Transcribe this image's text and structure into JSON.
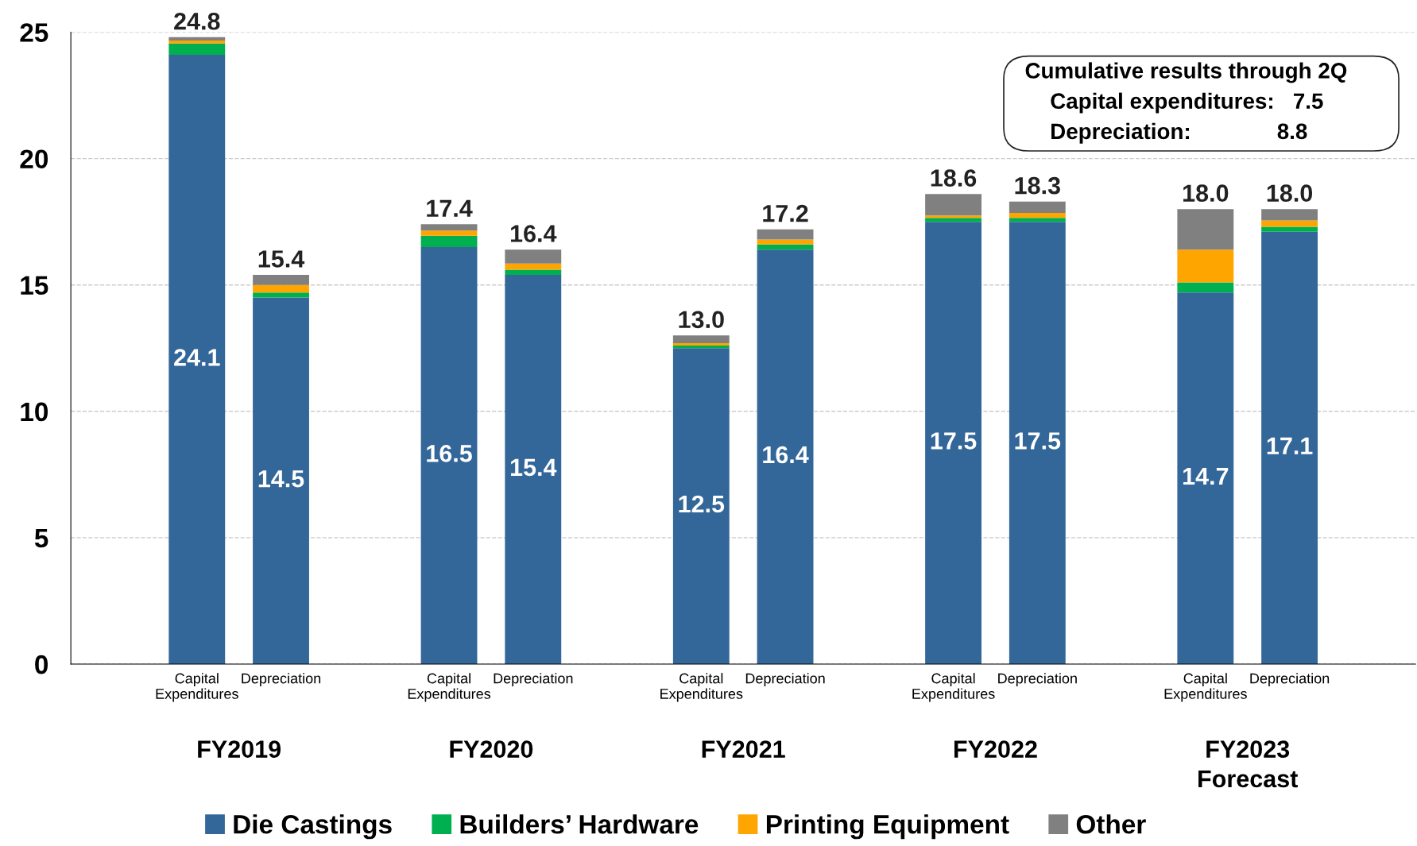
{
  "chart_data": {
    "type": "bar",
    "stacked": true,
    "categories": [
      "Capital\nExpenditures",
      "Depreciation",
      null,
      "Capital\nExpenditures",
      "Depreciation",
      null,
      "Capital\nExpenditures",
      "Depreciation",
      null,
      "Capital\nExpenditures",
      "Depreciation",
      null,
      "Capital\nExpenditures",
      "Depreciation"
    ],
    "series": [
      {
        "name": "Die Castings",
        "color": "#336699",
        "values": [
          24.1,
          14.5,
          null,
          16.5,
          15.4,
          null,
          12.5,
          16.4,
          null,
          17.5,
          17.5,
          null,
          14.7,
          17.1
        ],
        "value_labels": [
          "24.1",
          "14.5",
          null,
          "16.5",
          "15.4",
          null,
          "12.5",
          "16.4",
          null,
          "17.5",
          "17.5",
          null,
          "14.7",
          "17.1"
        ]
      },
      {
        "name": "Builders’ Hardware",
        "color": "#00b050",
        "values": [
          0.45,
          0.2,
          null,
          0.45,
          0.2,
          null,
          0.1,
          0.2,
          null,
          0.15,
          0.15,
          null,
          0.4,
          0.2
        ]
      },
      {
        "name": "Printing Equipment",
        "color": "#ffa500",
        "values": [
          0.12,
          0.3,
          null,
          0.2,
          0.25,
          null,
          0.1,
          0.2,
          null,
          0.1,
          0.2,
          null,
          1.3,
          0.25
        ]
      },
      {
        "name": "Other",
        "color": "#808080",
        "values": [
          0.13,
          0.4,
          null,
          0.25,
          0.55,
          null,
          0.3,
          0.4,
          null,
          0.85,
          0.45,
          null,
          1.6,
          0.45
        ]
      }
    ],
    "totals": [
      "24.8",
      "15.4",
      null,
      "17.4",
      "16.4",
      null,
      "13.0",
      "17.2",
      null,
      "18.6",
      "18.3",
      null,
      "18.0",
      "18.0"
    ],
    "ylim": [
      0,
      25
    ],
    "yticks": [
      0,
      5,
      10,
      15,
      20,
      25
    ],
    "grid": "y",
    "legend": "bottom",
    "annotations": [
      "Cumulative results through 2Q",
      "Capital expenditures:   7.5",
      "Depreciation:              8.8",
      "FY2019",
      "FY2020",
      "FY2021",
      "FY2022",
      "FY2023\nForecast"
    ]
  }
}
